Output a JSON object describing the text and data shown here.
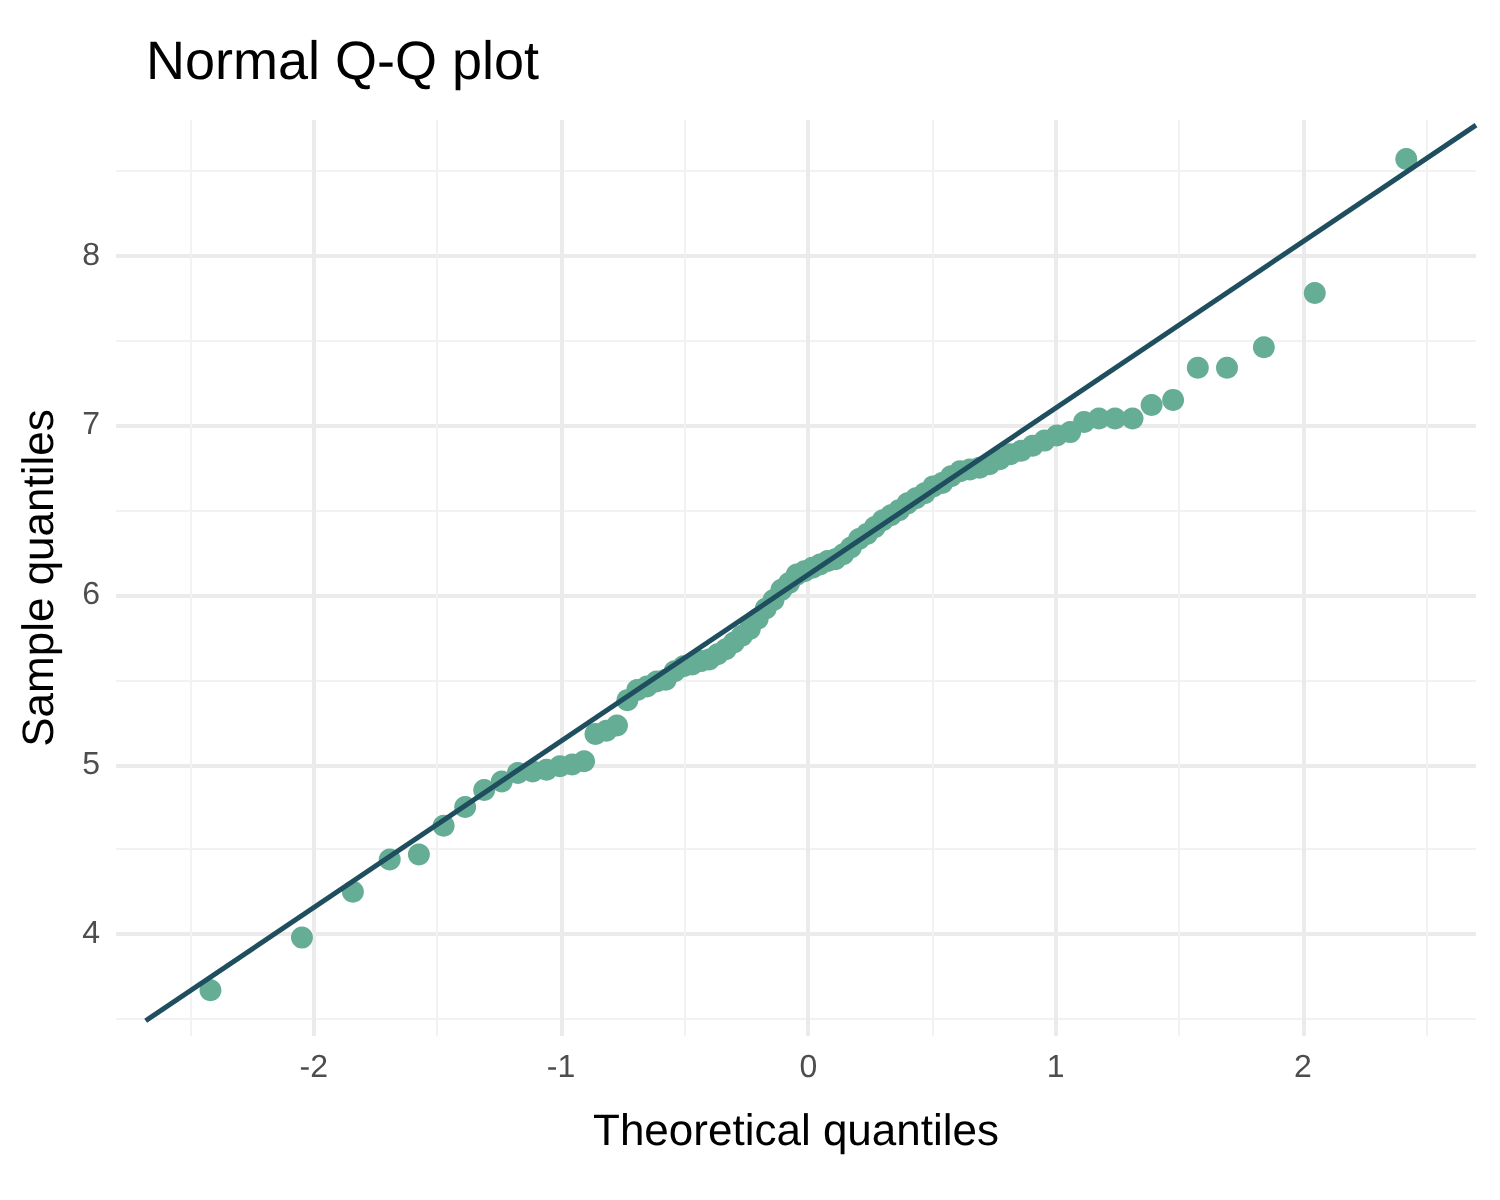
{
  "chart_data": {
    "type": "scatter",
    "title": "Normal Q-Q plot",
    "xlabel": "Theoretical quantiles",
    "ylabel": "Sample quantiles",
    "xlim": [
      -2.8,
      2.7
    ],
    "ylim": [
      3.4,
      8.8
    ],
    "xticks": [
      -2,
      -1,
      0,
      1,
      2
    ],
    "yticks": [
      4,
      5,
      6,
      7,
      8
    ],
    "grid": true,
    "marker": "circle",
    "series": [
      {
        "color": "#66ad96",
        "x": [
          -2.418,
          -2.048,
          -1.842,
          -1.693,
          -1.575,
          -1.475,
          -1.388,
          -1.311,
          -1.24,
          -1.175,
          -1.115,
          -1.059,
          -1.005,
          -0.955,
          -0.907,
          -0.861,
          -0.817,
          -0.774,
          -0.732,
          -0.692,
          -0.653,
          -0.614,
          -0.577,
          -0.541,
          -0.505,
          -0.47,
          -0.435,
          -0.401,
          -0.367,
          -0.334,
          -0.301,
          -0.269,
          -0.237,
          -0.205,
          -0.172,
          -0.141,
          -0.109,
          -0.078,
          -0.047,
          -0.016,
          0.016,
          0.047,
          0.078,
          0.109,
          0.141,
          0.172,
          0.205,
          0.237,
          0.269,
          0.301,
          0.334,
          0.367,
          0.401,
          0.435,
          0.47,
          0.505,
          0.541,
          0.577,
          0.614,
          0.653,
          0.692,
          0.732,
          0.774,
          0.817,
          0.861,
          0.907,
          0.955,
          1.005,
          1.059,
          1.115,
          1.175,
          1.24,
          1.311,
          1.388,
          1.475,
          1.575,
          1.693,
          1.842,
          2.048,
          2.418
        ],
        "values": [
          3.67,
          3.98,
          4.25,
          4.44,
          4.47,
          4.64,
          4.75,
          4.85,
          4.9,
          4.95,
          4.96,
          4.97,
          4.99,
          5.0,
          5.02,
          5.18,
          5.2,
          5.23,
          5.38,
          5.44,
          5.46,
          5.49,
          5.5,
          5.55,
          5.58,
          5.59,
          5.61,
          5.62,
          5.65,
          5.68,
          5.72,
          5.76,
          5.8,
          5.86,
          5.92,
          5.97,
          6.03,
          6.07,
          6.12,
          6.14,
          6.16,
          6.18,
          6.2,
          6.21,
          6.24,
          6.28,
          6.33,
          6.36,
          6.4,
          6.44,
          6.47,
          6.5,
          6.54,
          6.57,
          6.6,
          6.64,
          6.66,
          6.7,
          6.73,
          6.74,
          6.75,
          6.77,
          6.8,
          6.83,
          6.85,
          6.88,
          6.91,
          6.94,
          6.96,
          7.02,
          7.04,
          7.04,
          7.04,
          7.12,
          7.15,
          7.34,
          7.34,
          7.46,
          7.78,
          8.57
        ]
      },
      {
        "type": "line",
        "color": "#1f4e5f",
        "marker": "none",
        "line_style": "solid",
        "x": [
          -2.68,
          2.7
        ],
        "values": [
          3.49,
          8.77
        ]
      }
    ]
  }
}
